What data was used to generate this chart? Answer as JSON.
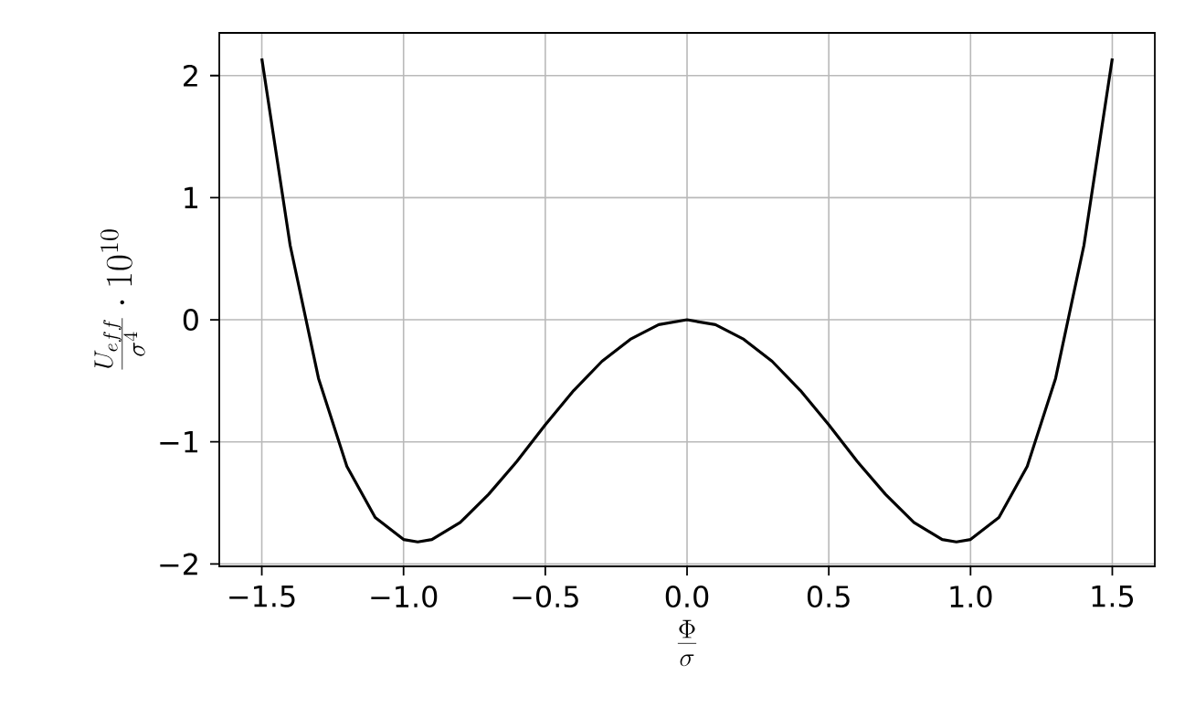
{
  "chart_data": {
    "type": "line",
    "xlabel": "\\frac{\\Phi}{\\sigma}",
    "ylabel": "\\frac{U_{eff}}{\\sigma^4}\\cdot 10^{10}",
    "x": [
      -1.5,
      -1.4,
      -1.3,
      -1.2,
      -1.1,
      -1.0,
      -0.95,
      -0.9,
      -0.8,
      -0.7,
      -0.6,
      -0.5,
      -0.4,
      -0.3,
      -0.2,
      -0.1,
      0.0,
      0.1,
      0.2,
      0.3,
      0.4,
      0.5,
      0.6,
      0.7,
      0.8,
      0.9,
      0.95,
      1.0,
      1.1,
      1.2,
      1.3,
      1.4,
      1.5
    ],
    "series": [
      {
        "color": "#000000",
        "values": [
          2.14,
          0.61,
          -0.48,
          -1.2,
          -1.62,
          -1.8,
          -1.82,
          -1.8,
          -1.66,
          -1.43,
          -1.16,
          -0.86,
          -0.58,
          -0.34,
          -0.16,
          -0.04,
          0.0,
          -0.04,
          -0.16,
          -0.34,
          -0.58,
          -0.86,
          -1.16,
          -1.43,
          -1.66,
          -1.8,
          -1.82,
          -1.8,
          -1.62,
          -1.2,
          -0.48,
          0.61,
          2.14
        ]
      }
    ],
    "xlim": [
      -1.65,
      1.65
    ],
    "ylim": [
      -2.02,
      2.35
    ],
    "xticks": [
      {
        "value": -1.5,
        "label": "−1.5"
      },
      {
        "value": -1.0,
        "label": "−1.0"
      },
      {
        "value": -0.5,
        "label": "−0.5"
      },
      {
        "value": 0.0,
        "label": "0.0"
      },
      {
        "value": 0.5,
        "label": "0.5"
      },
      {
        "value": 1.0,
        "label": "1.0"
      },
      {
        "value": 1.5,
        "label": "1.5"
      }
    ],
    "yticks": [
      {
        "value": -2,
        "label": "−2"
      },
      {
        "value": -1,
        "label": "−1"
      },
      0,
      1,
      2
    ],
    "grid": true,
    "marker": "none",
    "line_style": "solid"
  }
}
